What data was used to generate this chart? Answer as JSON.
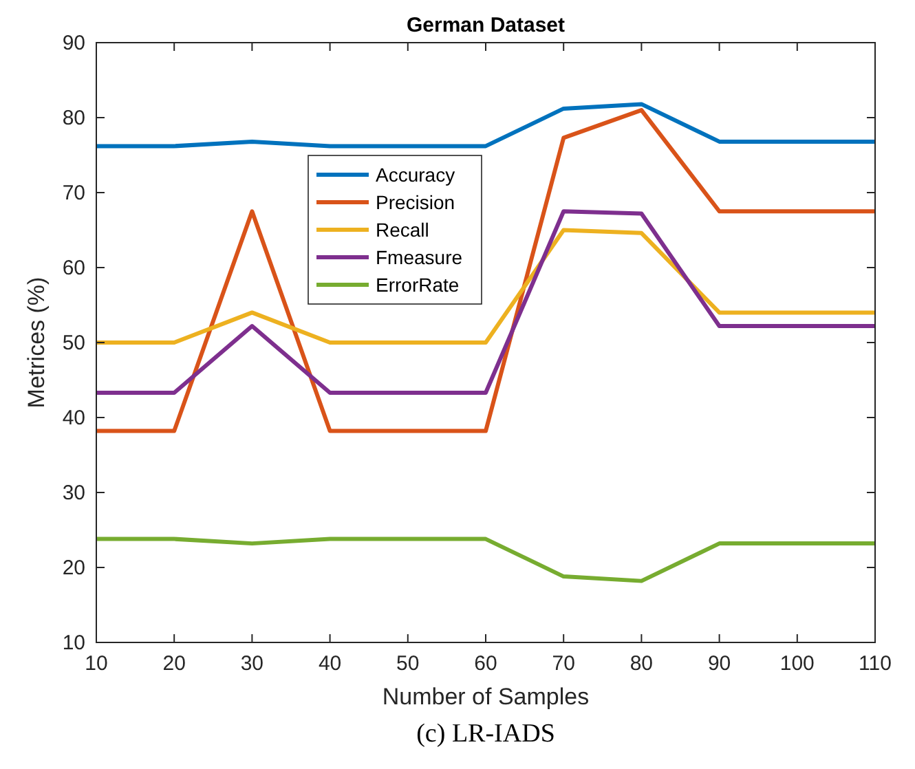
{
  "chart_data": {
    "type": "line",
    "title": "German Dataset",
    "xlabel": "Number of Samples",
    "ylabel": "Metrices (%)",
    "x": [
      10,
      20,
      30,
      40,
      50,
      60,
      70,
      80,
      90,
      100,
      110
    ],
    "series": [
      {
        "name": "Accuracy",
        "color": "#0072bd",
        "values": [
          76.2,
          76.2,
          76.8,
          76.2,
          76.2,
          76.2,
          81.2,
          81.8,
          76.8,
          76.8,
          76.8
        ]
      },
      {
        "name": "Precision",
        "color": "#d95319",
        "values": [
          38.2,
          38.2,
          67.5,
          38.2,
          38.2,
          38.2,
          77.3,
          81.0,
          67.5,
          67.5,
          67.5
        ]
      },
      {
        "name": "Recall",
        "color": "#edb120",
        "values": [
          50,
          50,
          54,
          50,
          50,
          50,
          65,
          64.6,
          54,
          54,
          54
        ]
      },
      {
        "name": "Fmeasure",
        "color": "#7e2f8e",
        "values": [
          43.3,
          43.3,
          52.2,
          43.3,
          43.3,
          43.3,
          67.5,
          67.2,
          52.2,
          52.2,
          52.2
        ]
      },
      {
        "name": "ErrorRate",
        "color": "#77ac30",
        "values": [
          23.8,
          23.8,
          23.2,
          23.8,
          23.8,
          23.8,
          18.8,
          18.2,
          23.2,
          23.2,
          23.2
        ]
      }
    ],
    "xlim": [
      10,
      110
    ],
    "xticks": [
      10,
      20,
      30,
      40,
      50,
      60,
      70,
      80,
      90,
      100,
      110
    ],
    "ylim": [
      10,
      90
    ],
    "yticks": [
      10,
      20,
      30,
      40,
      50,
      60,
      70,
      80,
      90
    ],
    "legend": "top",
    "grid": false,
    "marker": "none",
    "line_style": "solid",
    "annotations": [
      "(c) LR-IADS"
    ]
  }
}
